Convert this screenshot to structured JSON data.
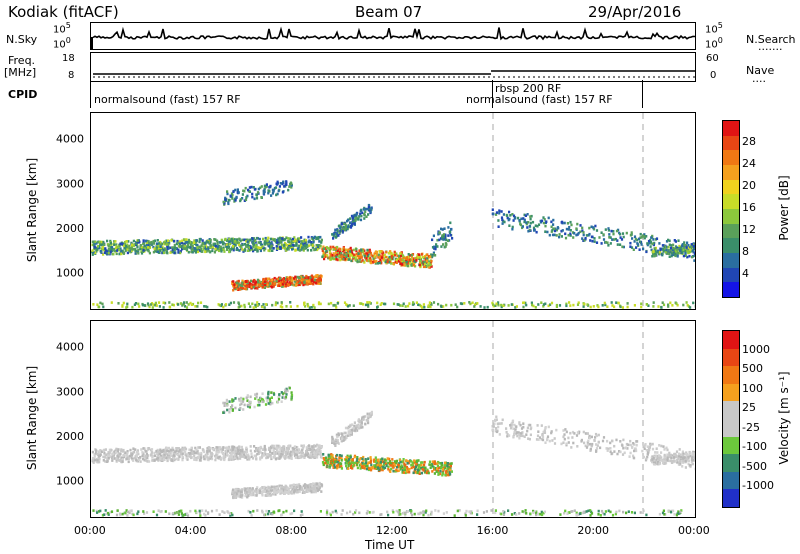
{
  "header": {
    "site": "Kodiak (fitACF)",
    "beam": "Beam 07",
    "date": "29/Apr/2016"
  },
  "left_labels": {
    "nsky": "N.Sky",
    "freq_line1": "Freq.",
    "freq_line2": "[MHz]",
    "cpid": "CPID"
  },
  "right_labels": {
    "nsearch": "N.Search",
    "nsearch_dots": ".......",
    "nave": "Nave",
    "nave_dots": "...."
  },
  "noise_panel": {
    "left_ticks": [
      "10^5",
      "10^0"
    ],
    "right_ticks": [
      "10^5",
      "10^0"
    ]
  },
  "freq_panel": {
    "left_ticks": [
      "18",
      "8"
    ],
    "right_ticks": [
      "60",
      "0"
    ]
  },
  "cpid_panel": {
    "segments": [
      {
        "label": "normalsound (fast) 157 RF"
      },
      {
        "label": "rbsp 200 RF"
      },
      {
        "label": "normalsound (fast) 157 RF"
      }
    ]
  },
  "chart_data": [
    {
      "type": "heatmap",
      "parameter": "Power",
      "ylabel": "Slant Range [km]",
      "xlabel": "Time UT",
      "x_ticks": [
        "00:00",
        "04:00",
        "08:00",
        "12:00",
        "16:00",
        "20:00",
        "00:00"
      ],
      "y_ticks": [
        1000,
        2000,
        3000,
        4000
      ],
      "ylim": [
        200,
        4600
      ],
      "colorbar": {
        "label": "Power [dB]",
        "ticks": [
          "4",
          "8",
          "12",
          "16",
          "20",
          "24",
          "28"
        ],
        "colors": [
          "#1414e6",
          "#2046b4",
          "#2a6ea0",
          "#3a8e6a",
          "#5aa05a",
          "#8cc83c",
          "#c8dc28",
          "#f0d21e",
          "#f5a01e",
          "#f07814",
          "#e84614",
          "#e01414"
        ]
      }
    },
    {
      "type": "heatmap",
      "parameter": "Velocity",
      "ylabel": "Slant Range [km]",
      "xlabel": "Time UT",
      "x_ticks": [
        "00:00",
        "04:00",
        "08:00",
        "12:00",
        "16:00",
        "20:00",
        "00:00"
      ],
      "y_ticks": [
        1000,
        2000,
        3000,
        4000
      ],
      "ylim": [
        200,
        4600
      ],
      "colorbar": {
        "label": "Velocity [m s⁻¹]",
        "ticks": [
          "1000",
          "500",
          "100",
          "25",
          "-25",
          "-100",
          "-500",
          "-1000"
        ],
        "colors": [
          "#2030c8",
          "#2a6ea0",
          "#3a8e6a",
          "#6cc83c",
          "#c8c8c8",
          "#c8c8c8",
          "#f5a01e",
          "#f07814",
          "#e84614",
          "#e01414"
        ]
      }
    }
  ],
  "time_label": "Time UT"
}
